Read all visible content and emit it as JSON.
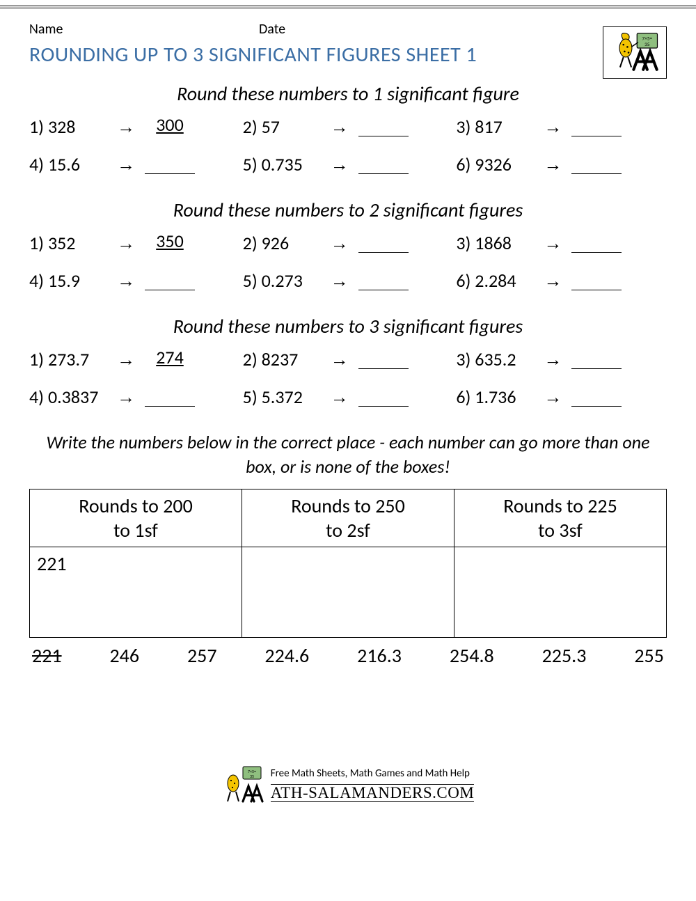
{
  "header": {
    "name_label": "Name",
    "date_label": "Date"
  },
  "title": "ROUNDING UP TO 3 SIGNIFICANT FIGURES SHEET 1",
  "sections": [
    {
      "heading": "Round these numbers to 1 significant figure",
      "items": [
        {
          "n": "1",
          "q": "328",
          "a": "300"
        },
        {
          "n": "2",
          "q": "57",
          "a": ""
        },
        {
          "n": "3",
          "q": "817",
          "a": ""
        },
        {
          "n": "4",
          "q": "15.6",
          "a": ""
        },
        {
          "n": "5",
          "q": "0.735",
          "a": ""
        },
        {
          "n": "6",
          "q": "9326",
          "a": ""
        }
      ]
    },
    {
      "heading": "Round these numbers to 2 significant figures",
      "items": [
        {
          "n": "1",
          "q": "352",
          "a": "350"
        },
        {
          "n": "2",
          "q": "926",
          "a": ""
        },
        {
          "n": "3",
          "q": "1868",
          "a": ""
        },
        {
          "n": "4",
          "q": "15.9",
          "a": ""
        },
        {
          "n": "5",
          "q": "0.273",
          "a": ""
        },
        {
          "n": "6",
          "q": "2.284",
          "a": ""
        }
      ]
    },
    {
      "heading": "Round these numbers to 3 significant figures",
      "items": [
        {
          "n": "1",
          "q": "273.7",
          "a": "274"
        },
        {
          "n": "2",
          "q": "8237",
          "a": ""
        },
        {
          "n": "3",
          "q": "635.2",
          "a": ""
        },
        {
          "n": "4",
          "q": "0.3837",
          "a": ""
        },
        {
          "n": "5",
          "q": "5.372",
          "a": ""
        },
        {
          "n": "6",
          "q": "1.736",
          "a": ""
        }
      ]
    }
  ],
  "instruction": "Write the numbers below in the correct place - each number can go more than one box, or is none of the boxes!",
  "table": {
    "columns": [
      {
        "l1": "Rounds to 200",
        "l2": "to 1sf"
      },
      {
        "l1": "Rounds to 250",
        "l2": "to 2sf"
      },
      {
        "l1": "Rounds to 225",
        "l2": "to 3sf"
      }
    ],
    "placed": "221"
  },
  "numbers": [
    "221",
    "246",
    "257",
    "224.6",
    "216.3",
    "254.8",
    "225.3",
    "255"
  ],
  "numbers_struck": [
    true,
    false,
    false,
    false,
    false,
    false,
    false,
    false
  ],
  "footer": {
    "tagline": "Free Math Sheets, Math Games and Math Help",
    "brand": "ATH-SALAMANDERS.COM"
  },
  "style": {
    "title_color": "#3b6ea5",
    "arrow_glyph": "→",
    "logo_colors": {
      "salamander": "#f4c400",
      "spots": "#000000",
      "board": "#8fbf7f",
      "m": "#000000"
    }
  }
}
